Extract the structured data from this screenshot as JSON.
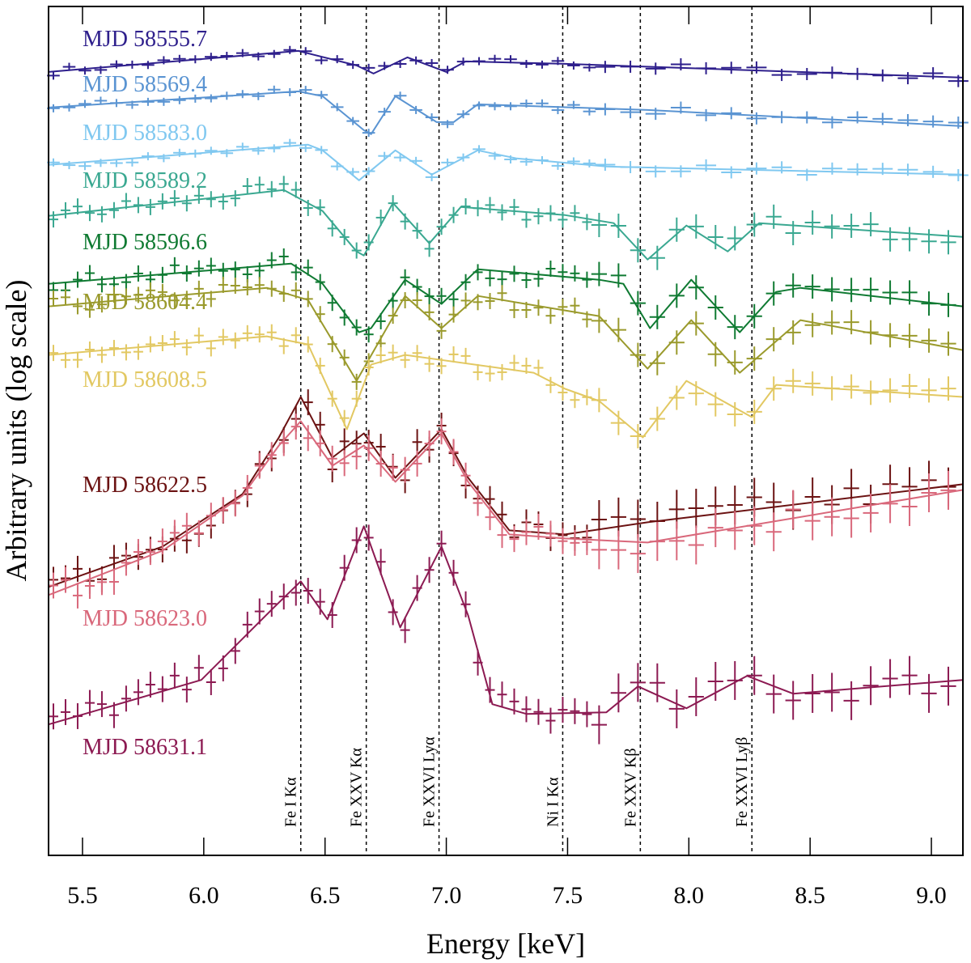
{
  "chart_data": {
    "type": "line",
    "title": "",
    "xlabel": "Energy [keV]",
    "ylabel": "Arbitrary units (log scale)",
    "xlim": [
      5.36,
      9.13
    ],
    "ylim": [
      0,
      105
    ],
    "grid": false,
    "x_ticks": [
      "5.5",
      "6.0",
      "6.5",
      "7.0",
      "7.5",
      "8.0",
      "8.5",
      "9.0"
    ],
    "x_tick_values": [
      5.5,
      6.0,
      6.5,
      7.0,
      7.5,
      8.0,
      8.5,
      9.0
    ],
    "reference_lines": [
      {
        "label": "Fe I Kα",
        "energy": 6.4
      },
      {
        "label": "Fe XXV Kα",
        "energy": 6.67
      },
      {
        "label": "Fe XXVI Lyα",
        "energy": 6.97
      },
      {
        "label": "Ni I Kα",
        "energy": 7.48
      },
      {
        "label": "Fe XXV Kβ",
        "energy": 7.8
      },
      {
        "label": "Fe XXVI Lyβ",
        "energy": 8.26
      }
    ],
    "series": [
      {
        "name": "MJD 58555.7",
        "color": "#2e1f8c",
        "model": [
          [
            5.36,
            96.9
          ],
          [
            6.39,
            99.5
          ],
          [
            6.63,
            97.7
          ],
          [
            6.7,
            96.7
          ],
          [
            6.84,
            98.7
          ],
          [
            7.0,
            96.9
          ],
          [
            7.08,
            98.2
          ],
          [
            7.49,
            97.9
          ],
          [
            9.13,
            96.2
          ]
        ]
      },
      {
        "name": "MJD 58569.4",
        "color": "#5a94d2",
        "model": [
          [
            5.36,
            92.5
          ],
          [
            6.39,
            94.5
          ],
          [
            6.49,
            93.9
          ],
          [
            6.66,
            89.7
          ],
          [
            6.69,
            89.2
          ],
          [
            6.79,
            93.9
          ],
          [
            6.96,
            90.7
          ],
          [
            7.03,
            90.7
          ],
          [
            7.13,
            92.9
          ],
          [
            7.83,
            92.2
          ],
          [
            9.13,
            90.2
          ]
        ]
      },
      {
        "name": "MJD 58583.0",
        "color": "#80c8f0",
        "model": [
          [
            5.36,
            85.4
          ],
          [
            6.43,
            87.9
          ],
          [
            6.49,
            87.2
          ],
          [
            6.64,
            83.5
          ],
          [
            6.79,
            87.2
          ],
          [
            6.94,
            84.2
          ],
          [
            7.13,
            87.2
          ],
          [
            7.29,
            86.2
          ],
          [
            7.66,
            85.2
          ],
          [
            9.13,
            84.2
          ]
        ]
      },
      {
        "name": "MJD 58589.2",
        "color": "#3aa891",
        "model": [
          [
            5.36,
            79.1
          ],
          [
            6.33,
            82.3
          ],
          [
            6.49,
            79.7
          ],
          [
            6.63,
            74.7
          ],
          [
            6.66,
            74.2
          ],
          [
            6.78,
            80.7
          ],
          [
            6.93,
            75.7
          ],
          [
            7.06,
            80.2
          ],
          [
            7.49,
            79.2
          ],
          [
            7.69,
            78.2
          ],
          [
            7.83,
            73.7
          ],
          [
            7.99,
            77.9
          ],
          [
            8.16,
            74.7
          ],
          [
            8.29,
            78.2
          ],
          [
            9.13,
            76.5
          ]
        ]
      },
      {
        "name": "MJD 58596.6",
        "color": "#0f7a32",
        "model": [
          [
            5.36,
            70.7
          ],
          [
            6.36,
            73.2
          ],
          [
            6.49,
            70.7
          ],
          [
            6.64,
            64.7
          ],
          [
            6.69,
            65.2
          ],
          [
            6.83,
            71.2
          ],
          [
            6.98,
            68.2
          ],
          [
            7.13,
            72.5
          ],
          [
            7.63,
            71.2
          ],
          [
            7.73,
            70.7
          ],
          [
            7.84,
            65.2
          ],
          [
            8.01,
            71.2
          ],
          [
            8.21,
            64.7
          ],
          [
            8.36,
            69.7
          ],
          [
            8.46,
            70.2
          ],
          [
            9.13,
            67.9
          ]
        ]
      },
      {
        "name": "MJD 58604.4",
        "color": "#9a9a2c",
        "model": [
          [
            5.36,
            67.9
          ],
          [
            6.26,
            70.2
          ],
          [
            6.43,
            68.7
          ],
          [
            6.63,
            58.7
          ],
          [
            6.83,
            69.2
          ],
          [
            6.98,
            65.2
          ],
          [
            7.13,
            69.2
          ],
          [
            7.63,
            66.7
          ],
          [
            7.83,
            60.2
          ],
          [
            8.01,
            66.2
          ],
          [
            8.21,
            59.7
          ],
          [
            8.46,
            66.2
          ],
          [
            9.13,
            62.5
          ]
        ]
      },
      {
        "name": "MJD 58608.5",
        "color": "#e2c862",
        "model": [
          [
            5.36,
            61.9
          ],
          [
            6.26,
            64.2
          ],
          [
            6.43,
            63.2
          ],
          [
            6.59,
            52.7
          ],
          [
            6.69,
            60.7
          ],
          [
            6.83,
            61.9
          ],
          [
            7.36,
            59.7
          ],
          [
            7.49,
            57.7
          ],
          [
            7.63,
            56.2
          ],
          [
            7.81,
            51.7
          ],
          [
            7.99,
            58.7
          ],
          [
            8.26,
            54.2
          ],
          [
            8.36,
            58.2
          ],
          [
            9.13,
            56.7
          ]
        ]
      },
      {
        "name": "MJD 58622.5",
        "color": "#6b1212",
        "model": [
          [
            5.36,
            33.2
          ],
          [
            5.83,
            38.2
          ],
          [
            6.16,
            44.7
          ],
          [
            6.31,
            51.7
          ],
          [
            6.4,
            56.7
          ],
          [
            6.53,
            49.2
          ],
          [
            6.66,
            52.2
          ],
          [
            6.79,
            46.7
          ],
          [
            6.98,
            52.7
          ],
          [
            7.09,
            46.7
          ],
          [
            7.26,
            40.2
          ],
          [
            7.49,
            39.7
          ],
          [
            7.83,
            41.2
          ],
          [
            9.13,
            45.9
          ]
        ]
      },
      {
        "name": "MJD 58623.0",
        "color": "#d9687b",
        "model": [
          [
            5.36,
            32.2
          ],
          [
            5.83,
            37.7
          ],
          [
            6.16,
            44.5
          ],
          [
            6.31,
            50.7
          ],
          [
            6.4,
            53.7
          ],
          [
            6.53,
            48.2
          ],
          [
            6.66,
            50.7
          ],
          [
            6.79,
            46.2
          ],
          [
            6.98,
            52.2
          ],
          [
            7.09,
            46.2
          ],
          [
            7.26,
            39.7
          ],
          [
            7.49,
            39.2
          ],
          [
            7.83,
            38.7
          ],
          [
            9.13,
            45.2
          ]
        ]
      },
      {
        "name": "MJD 58631.1",
        "color": "#8c1a52",
        "model": [
          [
            5.36,
            16.2
          ],
          [
            5.99,
            21.7
          ],
          [
            6.29,
            30.7
          ],
          [
            6.4,
            33.9
          ],
          [
            6.51,
            29.2
          ],
          [
            6.66,
            40.7
          ],
          [
            6.81,
            28.2
          ],
          [
            6.98,
            38.2
          ],
          [
            7.09,
            29.7
          ],
          [
            7.19,
            18.7
          ],
          [
            7.33,
            17.5
          ],
          [
            7.66,
            17.7
          ],
          [
            7.79,
            20.9
          ],
          [
            7.99,
            18.2
          ],
          [
            8.24,
            22.2
          ],
          [
            8.43,
            20.0
          ],
          [
            9.13,
            21.7
          ]
        ]
      }
    ]
  }
}
